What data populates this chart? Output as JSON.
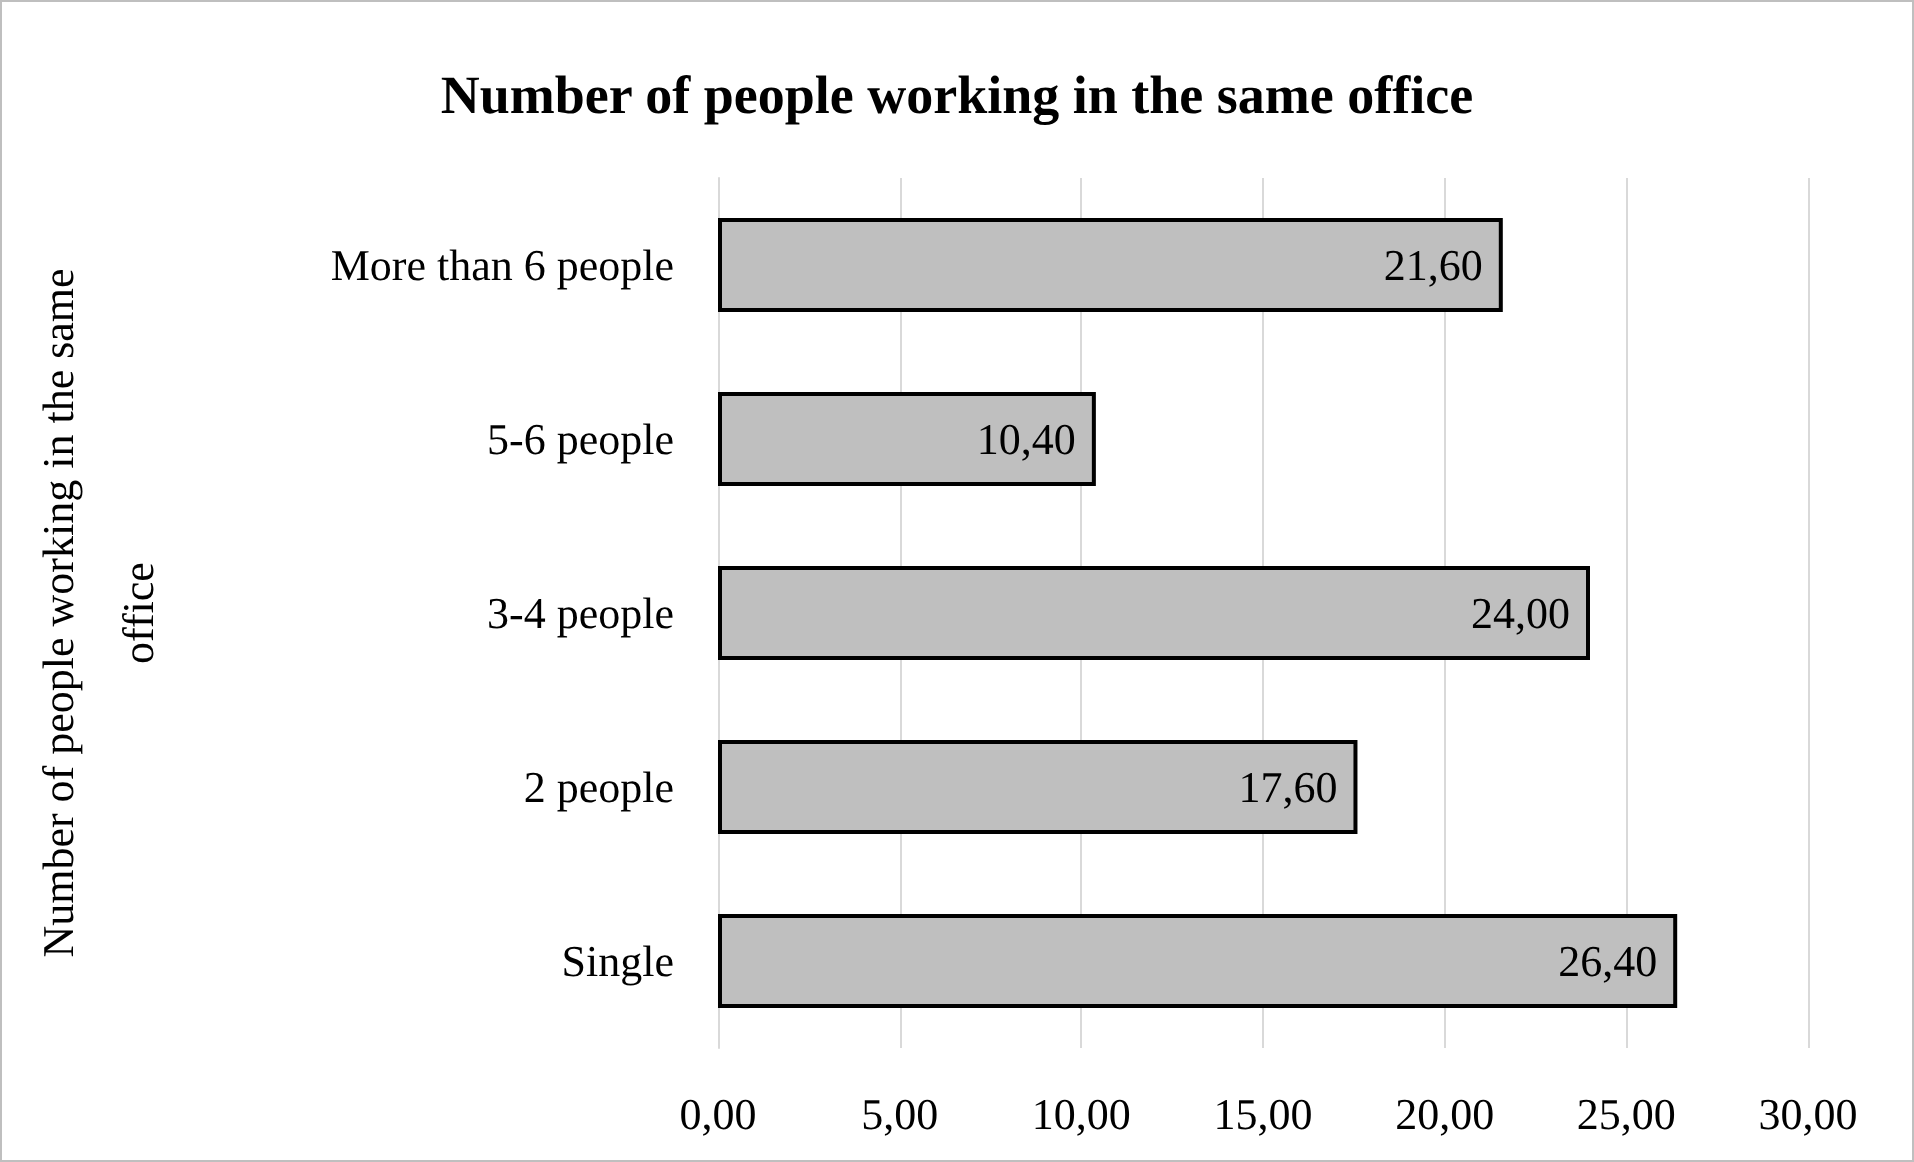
{
  "chart_data": {
    "type": "bar",
    "orientation": "horizontal",
    "title": "Number of people working in the same office",
    "ylabel": "Number of people working in the same office",
    "categories": [
      "More than 6 people",
      "5-6 people",
      "3-4 people",
      "2 people",
      "Single"
    ],
    "values": [
      21.6,
      10.4,
      24.0,
      17.6,
      26.4
    ],
    "value_labels": [
      "21,60",
      "10,40",
      "24,00",
      "17,60",
      "26,40"
    ],
    "color": "#bfbfbf",
    "xlim": [
      0,
      30
    ],
    "xticks": [
      {
        "value": 0,
        "label": "0,00"
      },
      {
        "value": 5,
        "label": "5,00"
      },
      {
        "value": 10,
        "label": "10,00"
      },
      {
        "value": 15,
        "label": "15,00"
      },
      {
        "value": 20,
        "label": "20,00"
      },
      {
        "value": 25,
        "label": "25,00"
      },
      {
        "value": 30,
        "label": "30,00"
      }
    ],
    "grid": "x"
  }
}
